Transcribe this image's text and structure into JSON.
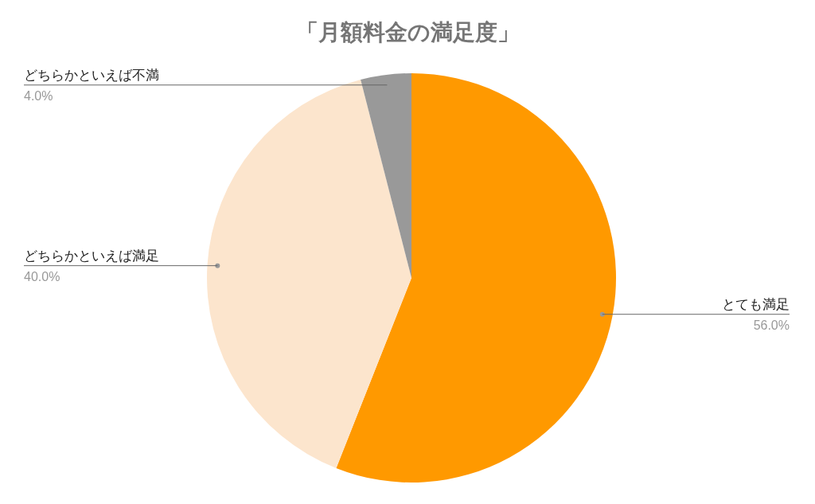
{
  "chart_data": {
    "type": "pie",
    "title": "「月額料金の満足度」",
    "categories": [
      "とても満足",
      "どちらかといえば満足",
      "どちらかといえば不満"
    ],
    "values": [
      56,
      40,
      4
    ],
    "colors": [
      "#ff9900",
      "#fce5cd",
      "#999999"
    ],
    "value_labels": [
      "56.0%",
      "40.0%",
      "4.0%"
    ]
  }
}
